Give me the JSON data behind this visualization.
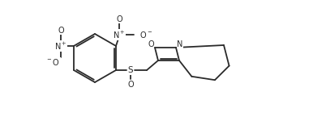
{
  "bg_color": "#ffffff",
  "bond_color": "#2a2a2a",
  "text_color": "#2a2a2a",
  "lw": 1.3,
  "fs": 7.0,
  "figsize": [
    3.86,
    1.55
  ],
  "dpi": 100,
  "xlim": [
    0,
    386
  ],
  "ylim": [
    0,
    155
  ]
}
